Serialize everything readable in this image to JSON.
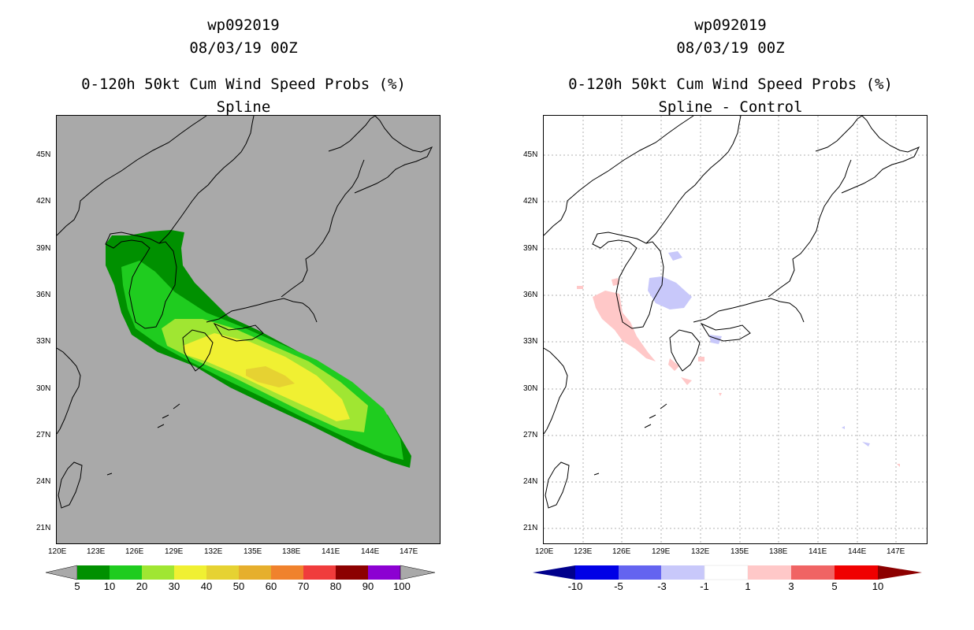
{
  "left_panel": {
    "storm_id": "wp092019",
    "datetime": "08/03/19 00Z",
    "product": "0-120h 50kt Cum Wind Speed Probs (%)",
    "method": "Spline",
    "background_color": "#a9a9a9"
  },
  "right_panel": {
    "storm_id": "wp092019",
    "datetime": "08/03/19 00Z",
    "product": "0-120h 50kt Cum Wind Speed Probs (%)",
    "method": "Spline - Control",
    "background_color": "#ffffff"
  },
  "axes": {
    "lat_labels": [
      "45N",
      "42N",
      "39N",
      "36N",
      "33N",
      "30N",
      "27N",
      "24N",
      "21N"
    ],
    "lon_labels": [
      "120E",
      "123E",
      "126E",
      "129E",
      "132E",
      "135E",
      "138E",
      "141E",
      "144E",
      "147E"
    ]
  },
  "left_colorbar": {
    "labels": [
      "5",
      "10",
      "20",
      "30",
      "40",
      "50",
      "60",
      "70",
      "80",
      "90",
      "100"
    ],
    "colors": [
      "#009000",
      "#1fcc1f",
      "#a0e632",
      "#f0f032",
      "#e6d232",
      "#e6af2d",
      "#f0822d",
      "#f03c3c",
      "#8c0000",
      "#8c00d2"
    ]
  },
  "right_colorbar": {
    "labels": [
      "-10",
      "-5",
      "-3",
      "-1",
      "1",
      "3",
      "5",
      "10"
    ],
    "colors": [
      "#0000e6",
      "#6464f0",
      "#c8c8fa",
      "#ffffff",
      "#ffc8c8",
      "#f06464",
      "#f00000"
    ],
    "end_low": "#00008c",
    "end_high": "#8c0000"
  }
}
